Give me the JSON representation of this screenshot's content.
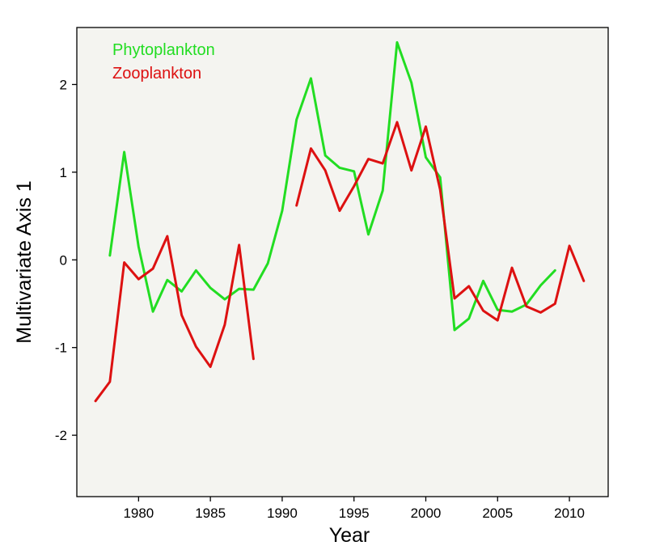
{
  "chart_data": {
    "type": "line",
    "xlabel": "Year",
    "ylabel": "Multivariate Axis 1",
    "xlim": [
      1975.7,
      2012.7
    ],
    "ylim": [
      -2.7,
      2.65
    ],
    "xticks": [
      1980,
      1985,
      1990,
      1995,
      2000,
      2005,
      2010
    ],
    "yticks": [
      -2,
      -1,
      0,
      1,
      2
    ],
    "grid": false,
    "legend_position": "top-left",
    "background_color": "#f4f4f0",
    "series": [
      {
        "name": "Phytoplankton",
        "color": "#22dd22",
        "segments": [
          [
            [
              1978,
              0.05
            ],
            [
              1979,
              1.23
            ],
            [
              1980,
              0.15
            ],
            [
              1981,
              -0.59
            ],
            [
              1982,
              -0.23
            ],
            [
              1983,
              -0.36
            ],
            [
              1984,
              -0.12
            ],
            [
              1985,
              -0.32
            ],
            [
              1986,
              -0.45
            ],
            [
              1987,
              -0.33
            ],
            [
              1988,
              -0.34
            ],
            [
              1989,
              -0.04
            ],
            [
              1990,
              0.56
            ],
            [
              1991,
              1.6
            ],
            [
              1992,
              2.07
            ],
            [
              1993,
              1.19
            ],
            [
              1994,
              1.05
            ],
            [
              1995,
              1.01
            ],
            [
              1996,
              0.29
            ],
            [
              1997,
              0.79
            ],
            [
              1998,
              2.48
            ],
            [
              1999,
              2.02
            ],
            [
              2000,
              1.17
            ],
            [
              2001,
              0.94
            ],
            [
              2002,
              -0.8
            ],
            [
              2003,
              -0.67
            ],
            [
              2004,
              -0.24
            ],
            [
              2005,
              -0.57
            ],
            [
              2006,
              -0.59
            ],
            [
              2007,
              -0.51
            ],
            [
              2008,
              -0.29
            ],
            [
              2009,
              -0.12
            ]
          ]
        ]
      },
      {
        "name": "Zooplankton",
        "color": "#dd1111",
        "segments": [
          [
            [
              1977,
              -1.61
            ],
            [
              1978,
              -1.39
            ],
            [
              1979,
              -0.03
            ],
            [
              1980,
              -0.22
            ],
            [
              1981,
              -0.1
            ],
            [
              1982,
              0.27
            ],
            [
              1983,
              -0.63
            ],
            [
              1984,
              -0.99
            ],
            [
              1985,
              -1.22
            ],
            [
              1986,
              -0.74
            ],
            [
              1987,
              0.17
            ],
            [
              1988,
              -1.13
            ]
          ],
          [
            [
              1991,
              0.62
            ],
            [
              1992,
              1.27
            ],
            [
              1993,
              1.02
            ],
            [
              1994,
              0.56
            ],
            [
              1995,
              0.84
            ],
            [
              1996,
              1.15
            ],
            [
              1997,
              1.1
            ],
            [
              1998,
              1.57
            ],
            [
              1999,
              1.02
            ],
            [
              2000,
              1.52
            ],
            [
              2001,
              0.8
            ],
            [
              2002,
              -0.44
            ],
            [
              2003,
              -0.3
            ],
            [
              2004,
              -0.58
            ],
            [
              2005,
              -0.69
            ],
            [
              2006,
              -0.09
            ],
            [
              2007,
              -0.53
            ],
            [
              2008,
              -0.6
            ],
            [
              2009,
              -0.5
            ],
            [
              2010,
              0.16
            ],
            [
              2011,
              -0.24
            ]
          ]
        ]
      }
    ]
  }
}
